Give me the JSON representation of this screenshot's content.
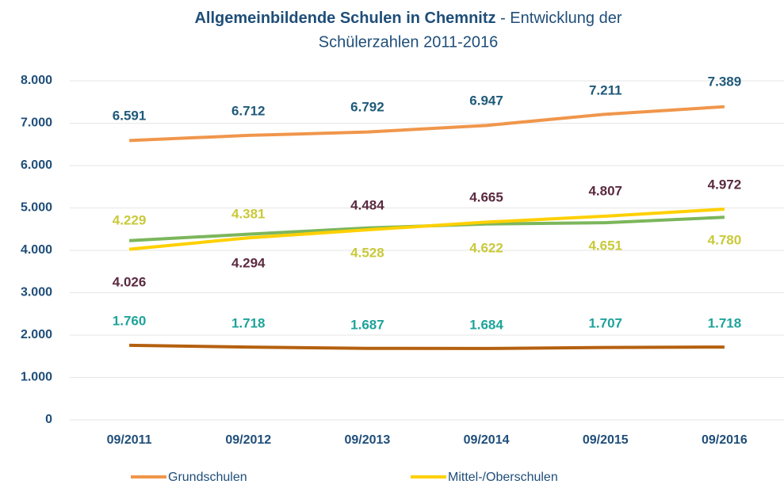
{
  "chart_data": {
    "type": "line",
    "title_bold": "Allgemeinbildende Schulen in Chemnitz",
    "title_lines": [
      "- Entwicklung der",
      "Schülerzahlen 2011-2016"
    ],
    "categories": [
      "09/2011",
      "09/2012",
      "09/2013",
      "09/2014",
      "09/2015",
      "09/2016"
    ],
    "series": [
      {
        "name": "Grundschulen",
        "color": "#f0964b",
        "label_color": "#1f5a7a",
        "values": [
          6591,
          6712,
          6792,
          6947,
          7211,
          7389
        ],
        "value_labels": [
          "6.591",
          "6.712",
          "6.792",
          "6.947",
          "7.211",
          "7.389"
        ]
      },
      {
        "name": "Mittel-/Oberschulen",
        "color": "#ffd000",
        "label_color": "#5b2a40",
        "values": [
          4026,
          4294,
          4484,
          4665,
          4807,
          4972
        ],
        "value_labels": [
          "4.026",
          "4.294",
          "4.484",
          "4.665",
          "4.807",
          "4.972"
        ]
      },
      {
        "color": "#7cb65c",
        "label_color": "#c9c93a",
        "values": [
          4229,
          4381,
          4528,
          4622,
          4651,
          4780
        ],
        "value_labels": [
          "4.229",
          "4.381",
          "4.528",
          "4.622",
          "4.651",
          "4.780"
        ]
      },
      {
        "color": "#b5600f",
        "label_color": "#1ea39a",
        "values": [
          1760,
          1718,
          1687,
          1684,
          1707,
          1718
        ],
        "value_labels": [
          "1.760",
          "1.718",
          "1.687",
          "1.684",
          "1.707",
          "1.718"
        ]
      }
    ],
    "ylim": [
      0,
      8000
    ],
    "yticks": [
      0,
      {
        "value": 1000,
        "label": "1.000"
      },
      {
        "value": 2000,
        "label": "2.000"
      },
      {
        "value": 3000,
        "label": "3.000"
      },
      {
        "value": 4000,
        "label": "4.000"
      },
      {
        "value": 5000,
        "label": "5.000"
      },
      {
        "value": 6000,
        "label": "6.000"
      },
      {
        "value": 7000,
        "label": "7.000"
      },
      {
        "value": 8000,
        "label": "8.000"
      }
    ],
    "grid": true,
    "legend": "bottom"
  }
}
